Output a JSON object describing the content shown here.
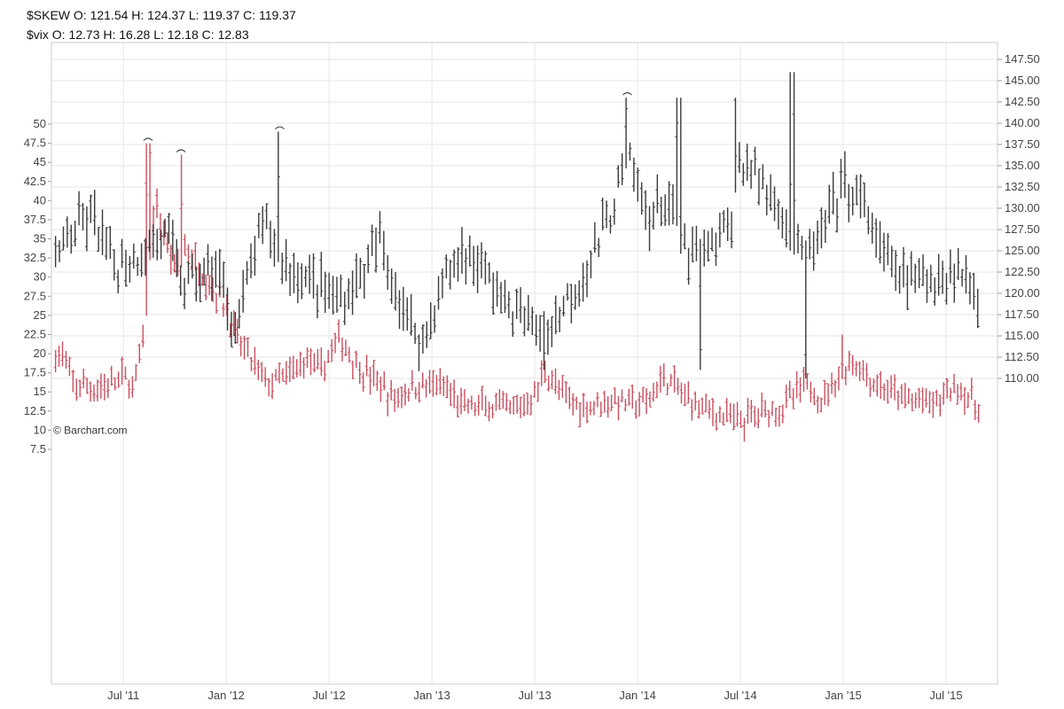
{
  "header": {
    "skew_line": "$SKEW O: 121.54 H: 124.37 L: 119.37 C: 119.37",
    "vix_line": "$vix O: 12.73 H: 16.28 L: 12.18 C: 12.83"
  },
  "watermark": "© Barchart.com",
  "colors": {
    "skew": "#3a3a3a",
    "vix": "#c9505f",
    "grid": "#e6e6e6",
    "frame": "#cccccc"
  },
  "chart_data": {
    "type": "ohlc",
    "x_tick_labels": [
      "Jul '11",
      "Jan '12",
      "Jul '12",
      "Jan '13",
      "Jul '13",
      "Jan '14",
      "Jul '14",
      "Jan '15",
      "Jul '15"
    ],
    "x_tick_values": [
      2011.5,
      2012.0,
      2012.5,
      2013.0,
      2013.5,
      2014.0,
      2014.5,
      2015.0,
      2015.5
    ],
    "x_range": [
      2011.15,
      2015.75
    ],
    "left_axis": {
      "series": "$vix",
      "range": [
        7.5,
        50
      ],
      "tick_labels": [
        "7.5",
        "10",
        "12.5",
        "15",
        "17.5",
        "20",
        "22.5",
        "25",
        "27.5",
        "30",
        "32.5",
        "35",
        "37.5",
        "40",
        "42.5",
        "45",
        "47.5",
        "50"
      ],
      "tick_values": [
        7.5,
        10,
        12.5,
        15,
        17.5,
        20,
        22.5,
        25,
        27.5,
        30,
        32.5,
        35,
        37.5,
        40,
        42.5,
        45,
        47.5,
        50
      ]
    },
    "right_axis": {
      "series": "$SKEW",
      "range": [
        110,
        147.5
      ],
      "tick_labels": [
        "110.00",
        "112.50",
        "115.00",
        "117.50",
        "120.00",
        "122.50",
        "125.00",
        "127.50",
        "130.00",
        "132.50",
        "135.00",
        "137.50",
        "140.00",
        "142.50",
        "145.00",
        "147.50"
      ],
      "tick_values": [
        110,
        112.5,
        115,
        117.5,
        120,
        122.5,
        125,
        127.5,
        130,
        132.5,
        135,
        137.5,
        140,
        142.5,
        145,
        147.5
      ]
    },
    "grid": true,
    "series": [
      {
        "name": "$SKEW",
        "axis": "right",
        "anchors": [
          [
            2011.15,
            123
          ],
          [
            2011.25,
            127
          ],
          [
            2011.35,
            129
          ],
          [
            2011.45,
            123
          ],
          [
            2011.55,
            124
          ],
          [
            2011.7,
            127
          ],
          [
            2011.8,
            121
          ],
          [
            2011.95,
            123
          ],
          [
            2012.05,
            116
          ],
          [
            2012.15,
            126
          ],
          [
            2012.2,
            128
          ],
          [
            2012.3,
            123
          ],
          [
            2012.45,
            121
          ],
          [
            2012.55,
            119
          ],
          [
            2012.65,
            122
          ],
          [
            2012.75,
            126
          ],
          [
            2012.85,
            119
          ],
          [
            2012.95,
            114
          ],
          [
            2013.05,
            121
          ],
          [
            2013.15,
            125
          ],
          [
            2013.25,
            123
          ],
          [
            2013.35,
            119
          ],
          [
            2013.45,
            117
          ],
          [
            2013.55,
            115
          ],
          [
            2013.65,
            119
          ],
          [
            2013.75,
            123
          ],
          [
            2013.85,
            128
          ],
          [
            2013.95,
            136
          ],
          [
            2014.05,
            129
          ],
          [
            2014.15,
            131
          ],
          [
            2014.25,
            124
          ],
          [
            2014.35,
            125
          ],
          [
            2014.45,
            128
          ],
          [
            2014.5,
            136
          ],
          [
            2014.6,
            133
          ],
          [
            2014.7,
            130
          ],
          [
            2014.8,
            124
          ],
          [
            2014.9,
            127
          ],
          [
            2015.0,
            133
          ],
          [
            2015.1,
            130
          ],
          [
            2015.2,
            124
          ],
          [
            2015.35,
            121
          ],
          [
            2015.45,
            122
          ],
          [
            2015.55,
            123
          ],
          [
            2015.65,
            120
          ]
        ],
        "extremes": [
          [
            2012.26,
            139
          ],
          [
            2013.95,
            143
          ],
          [
            2014.2,
            143
          ],
          [
            2014.48,
            143
          ],
          [
            2014.75,
            146
          ],
          [
            2014.3,
            111
          ],
          [
            2014.82,
            110
          ],
          [
            2013.55,
            111
          ]
        ],
        "last": {
          "open": 121.54,
          "high": 124.37,
          "low": 119.37,
          "close": 119.37
        }
      },
      {
        "name": "$vix",
        "axis": "left",
        "anchors": [
          [
            2011.15,
            19.5
          ],
          [
            2011.2,
            20
          ],
          [
            2011.25,
            16
          ],
          [
            2011.35,
            15.5
          ],
          [
            2011.45,
            16
          ],
          [
            2011.5,
            17
          ],
          [
            2011.55,
            15.5
          ],
          [
            2011.6,
            22
          ],
          [
            2011.65,
            40
          ],
          [
            2011.75,
            31
          ],
          [
            2011.8,
            34
          ],
          [
            2011.9,
            30
          ],
          [
            2012.0,
            26
          ],
          [
            2012.05,
            22
          ],
          [
            2012.15,
            18
          ],
          [
            2012.2,
            16
          ],
          [
            2012.3,
            17
          ],
          [
            2012.4,
            19.5
          ],
          [
            2012.45,
            17.5
          ],
          [
            2012.55,
            22
          ],
          [
            2012.65,
            18
          ],
          [
            2012.75,
            16
          ],
          [
            2012.8,
            14
          ],
          [
            2012.9,
            15.5
          ],
          [
            2013.0,
            16
          ],
          [
            2013.08,
            15
          ],
          [
            2013.15,
            13
          ],
          [
            2013.3,
            13
          ],
          [
            2013.4,
            12.5
          ],
          [
            2013.5,
            14.5
          ],
          [
            2013.55,
            18
          ],
          [
            2013.65,
            14
          ],
          [
            2013.75,
            13
          ],
          [
            2013.85,
            14
          ],
          [
            2013.95,
            13.5
          ],
          [
            2014.05,
            13.5
          ],
          [
            2014.12,
            17
          ],
          [
            2014.25,
            14
          ],
          [
            2014.4,
            12
          ],
          [
            2014.5,
            11
          ],
          [
            2014.6,
            12.5
          ],
          [
            2014.7,
            13
          ],
          [
            2014.82,
            16
          ],
          [
            2014.9,
            14
          ],
          [
            2014.97,
            17
          ],
          [
            2015.05,
            19
          ],
          [
            2015.15,
            16
          ],
          [
            2015.3,
            14
          ],
          [
            2015.45,
            13.5
          ],
          [
            2015.55,
            16
          ],
          [
            2015.65,
            13
          ]
        ],
        "extremes": [
          [
            2011.62,
            47.5
          ],
          [
            2011.78,
            46
          ],
          [
            2014.5,
            10.3
          ],
          [
            2015.0,
            22.5
          ]
        ],
        "last": {
          "open": 12.73,
          "high": 16.28,
          "low": 12.18,
          "close": 12.83
        }
      }
    ]
  }
}
